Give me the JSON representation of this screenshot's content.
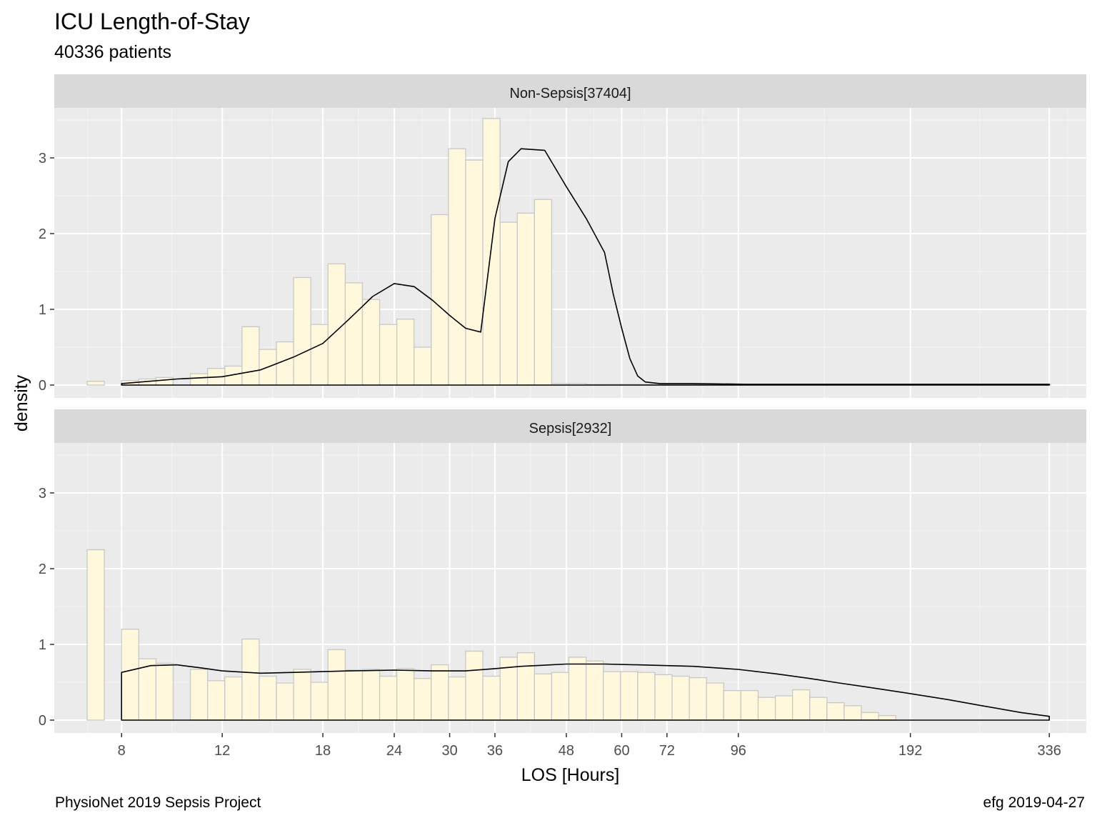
{
  "title": "ICU Length-of-Stay",
  "subtitle": "40336 patients",
  "caption_left": "PhysioNet 2019 Sepsis Project",
  "caption_right": "efg 2019-04-27",
  "colors": {
    "panel_background": "#ebebeb",
    "strip_background": "#d9d9d9",
    "grid_major": "#ffffff",
    "grid_minor": "#f4f4f4",
    "bar_fill": "#fff8dc",
    "bar_stroke": "#c8c8c8",
    "density_line": "#000000"
  },
  "chart_data": {
    "type": "bar",
    "xlabel": "LOS [Hours]",
    "ylabel": "density",
    "x_scale": "log2",
    "xlim": [
      6.1,
      390
    ],
    "ylim": [
      -0.17,
      3.66
    ],
    "x_ticks": [
      8,
      12,
      18,
      24,
      30,
      36,
      48,
      60,
      72,
      96,
      192,
      336
    ],
    "y_ticks": [
      0,
      1,
      2,
      3
    ],
    "bin_width_log2": 0.1,
    "first_bin_start_hours": 6.964,
    "legend": "none",
    "facets": [
      {
        "label": "Non-Sepsis[37404]",
        "bars": [
          0.05,
          0,
          0.06,
          0.08,
          0.1,
          0,
          0.15,
          0.22,
          0.25,
          0.77,
          0.47,
          0.57,
          1.42,
          0.8,
          1.6,
          1.35,
          1.13,
          0.8,
          0.87,
          0.5,
          2.25,
          3.12,
          2.97,
          3.52,
          2.15,
          2.27,
          2.45,
          0.02,
          0.02,
          0.01,
          0.01,
          0.01,
          0.01,
          0.01,
          0.01,
          0.01,
          0.01,
          0.01,
          0.01,
          0.01,
          0.01,
          0.01,
          0.01,
          0.01,
          0.01,
          0.01,
          0.01,
          0.01,
          0.01,
          0.01,
          0.01,
          0.01,
          0.01,
          0.01,
          0.01,
          0.01
        ],
        "density": {
          "x": [
            8,
            10,
            12,
            14,
            16,
            18,
            20,
            22,
            24,
            26,
            28,
            30,
            32,
            34,
            36,
            38,
            40,
            44,
            48,
            52,
            56,
            58,
            60,
            62,
            64,
            66,
            70,
            80,
            100,
            150,
            200,
            336
          ],
          "y": [
            0.02,
            0.08,
            0.11,
            0.2,
            0.37,
            0.55,
            0.87,
            1.17,
            1.34,
            1.3,
            1.12,
            0.92,
            0.75,
            0.7,
            2.2,
            2.95,
            3.12,
            3.1,
            2.62,
            2.2,
            1.75,
            1.2,
            0.75,
            0.35,
            0.12,
            0.04,
            0.02,
            0.02,
            0.01,
            0.01,
            0.01,
            0.01
          ]
        }
      },
      {
        "label": "Sepsis[2932]",
        "bars": [
          2.25,
          0,
          1.2,
          0.81,
          0.75,
          0,
          0.67,
          0.52,
          0.57,
          1.07,
          0.58,
          0.49,
          0.67,
          0.5,
          0.93,
          0.66,
          0.67,
          0.58,
          0.68,
          0.55,
          0.73,
          0.57,
          0.91,
          0.58,
          0.83,
          0.89,
          0.61,
          0.63,
          0.83,
          0.78,
          0.64,
          0.64,
          0.63,
          0.6,
          0.58,
          0.56,
          0.49,
          0.39,
          0.39,
          0.3,
          0.32,
          0.4,
          0.3,
          0.23,
          0.19,
          0.1,
          0.06
        ],
        "density": {
          "x": [
            8,
            9,
            10,
            11,
            12,
            14,
            16,
            18,
            20,
            24,
            28,
            32,
            36,
            40,
            48,
            56,
            64,
            72,
            80,
            96,
            112,
            128,
            144,
            160,
            192,
            224,
            256,
            300,
            336
          ],
          "y": [
            0.63,
            0.72,
            0.73,
            0.69,
            0.65,
            0.62,
            0.63,
            0.64,
            0.65,
            0.66,
            0.65,
            0.65,
            0.68,
            0.71,
            0.74,
            0.74,
            0.73,
            0.72,
            0.71,
            0.67,
            0.61,
            0.55,
            0.49,
            0.44,
            0.35,
            0.27,
            0.19,
            0.1,
            0.05
          ]
        }
      }
    ]
  }
}
